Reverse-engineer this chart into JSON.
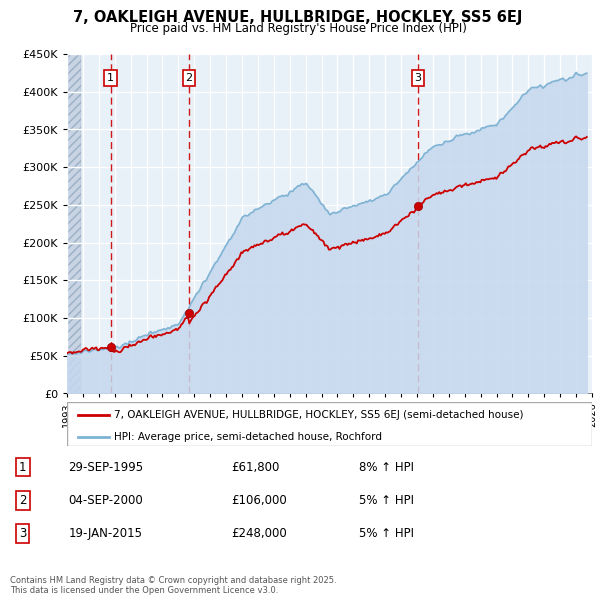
{
  "title": "7, OAKLEIGH AVENUE, HULLBRIDGE, HOCKLEY, SS5 6EJ",
  "subtitle": "Price paid vs. HM Land Registry's House Price Index (HPI)",
  "transactions": [
    {
      "date": 1995.75,
      "price": 61800,
      "label": "1"
    },
    {
      "date": 2000.67,
      "price": 106000,
      "label": "2"
    },
    {
      "date": 2015.05,
      "price": 248000,
      "label": "3"
    }
  ],
  "legend_property": "7, OAKLEIGH AVENUE, HULLBRIDGE, HOCKLEY, SS5 6EJ (semi-detached house)",
  "legend_hpi": "HPI: Average price, semi-detached house, Rochford",
  "table_rows": [
    {
      "num": "1",
      "date": "29-SEP-1995",
      "price": "£61,800",
      "hpi": "8% ↑ HPI"
    },
    {
      "num": "2",
      "date": "04-SEP-2000",
      "price": "£106,000",
      "hpi": "5% ↑ HPI"
    },
    {
      "num": "3",
      "date": "19-JAN-2015",
      "price": "£248,000",
      "hpi": "5% ↑ HPI"
    }
  ],
  "footer": "Contains HM Land Registry data © Crown copyright and database right 2025.\nThis data is licensed under the Open Government Licence v3.0.",
  "ymin": 0,
  "ymax": 450000,
  "xmin": 1993,
  "xmax": 2026,
  "property_color": "#cc0000",
  "hpi_fill_color": "#c5d8ee",
  "hpi_line_color": "#7fb3d3",
  "hatch_region_end": 1993.5,
  "hatch_color": "#c8d4e3",
  "bg_color": "#dde8f0",
  "chart_bg_color": "#e8f0f8",
  "grid_color": "#ffffff",
  "dashed_color": "#cc0000"
}
